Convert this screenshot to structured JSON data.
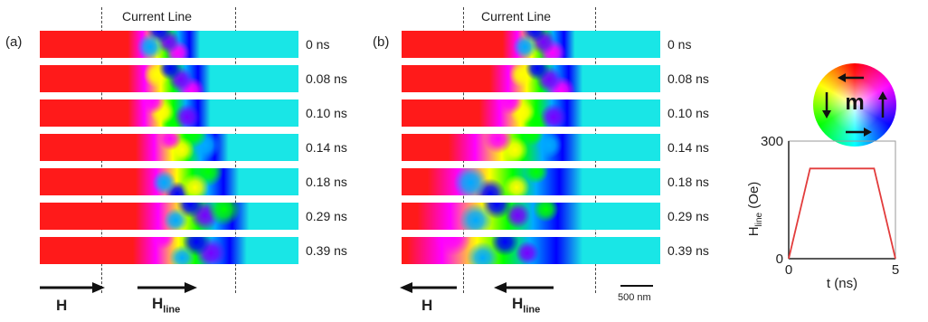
{
  "colors": {
    "domain_left": "#ff1a1a",
    "domain_right": "#19e6e6",
    "wall_colors": [
      "#ff00ff",
      "#ffff00",
      "#00ff00",
      "#00aaff",
      "#0000ff",
      "#7700ff"
    ],
    "pulse_line": "#e23c3c"
  },
  "panel_a": {
    "label": "(a)",
    "current_line_label": "Current Line",
    "times": [
      "0 ns",
      "0.08 ns",
      "0.10 ns",
      "0.14 ns",
      "0.18 ns",
      "0.29 ns",
      "0.39 ns"
    ],
    "field_label": "H",
    "line_field_label": "H",
    "line_field_sub": "line",
    "field_direction": "right",
    "line_field_direction": "right"
  },
  "panel_b": {
    "label": "(b)",
    "current_line_label": "Current Line",
    "times": [
      "0 ns",
      "0.08 ns",
      "0.10 ns",
      "0.14 ns",
      "0.18 ns",
      "0.29 ns",
      "0.39 ns"
    ],
    "field_label": "H",
    "line_field_label": "H",
    "line_field_sub": "line",
    "field_direction": "left",
    "line_field_direction": "left",
    "scale_bar": "500 nm"
  },
  "color_wheel": {
    "label": "m",
    "icons": [
      "arrow-left-icon",
      "arrow-down-icon",
      "arrow-up-icon",
      "arrow-right-icon"
    ]
  },
  "chart_data": {
    "type": "line",
    "title": "",
    "xlabel": "t (ns)",
    "ylabel": "H",
    "ylabel_sub": "line",
    "ylabel_unit": " (Oe)",
    "xlim": [
      0,
      5
    ],
    "ylim": [
      0,
      300
    ],
    "xticks": [
      "0",
      "5"
    ],
    "yticks": [
      "0",
      "300"
    ],
    "series": [
      {
        "x": [
          0,
          1,
          4,
          5
        ],
        "y": [
          0,
          230,
          230,
          0
        ]
      }
    ],
    "grid": false
  }
}
